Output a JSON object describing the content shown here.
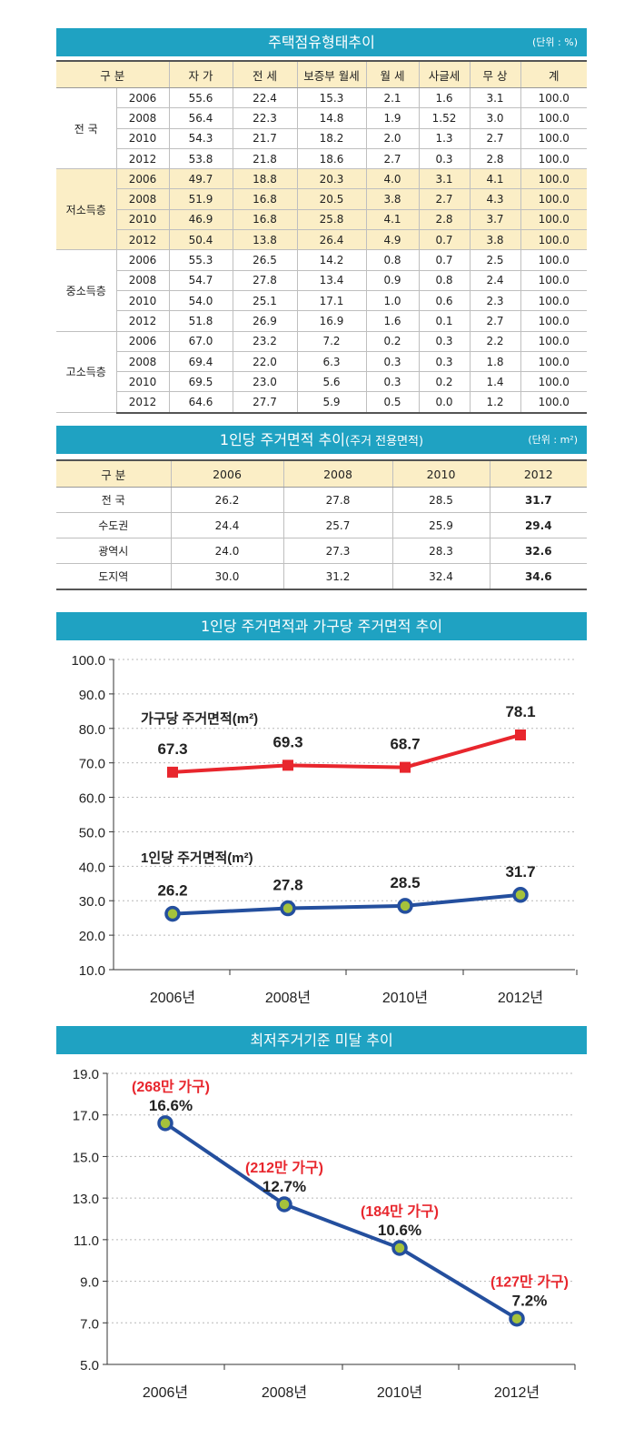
{
  "tenure": {
    "title": "주택점유형태추이",
    "unit": "(단위 : %)",
    "headers": [
      "구 분",
      "",
      "자 가",
      "전 세",
      "보증부 월세",
      "월 세",
      "사글세",
      "무 상",
      "계"
    ],
    "groups": [
      {
        "name": "전 국",
        "highlight": false,
        "rows": [
          [
            "2006",
            "55.6",
            "22.4",
            "15.3",
            "2.1",
            "1.6",
            "3.1",
            "100.0"
          ],
          [
            "2008",
            "56.4",
            "22.3",
            "14.8",
            "1.9",
            "1.52",
            "3.0",
            "100.0"
          ],
          [
            "2010",
            "54.3",
            "21.7",
            "18.2",
            "2.0",
            "1.3",
            "2.7",
            "100.0"
          ],
          [
            "2012",
            "53.8",
            "21.8",
            "18.6",
            "2.7",
            "0.3",
            "2.8",
            "100.0"
          ]
        ]
      },
      {
        "name": "저소득층",
        "highlight": true,
        "rows": [
          [
            "2006",
            "49.7",
            "18.8",
            "20.3",
            "4.0",
            "3.1",
            "4.1",
            "100.0"
          ],
          [
            "2008",
            "51.9",
            "16.8",
            "20.5",
            "3.8",
            "2.7",
            "4.3",
            "100.0"
          ],
          [
            "2010",
            "46.9",
            "16.8",
            "25.8",
            "4.1",
            "2.8",
            "3.7",
            "100.0"
          ],
          [
            "2012",
            "50.4",
            "13.8",
            "26.4",
            "4.9",
            "0.7",
            "3.8",
            "100.0"
          ]
        ]
      },
      {
        "name": "중소득층",
        "highlight": false,
        "rows": [
          [
            "2006",
            "55.3",
            "26.5",
            "14.2",
            "0.8",
            "0.7",
            "2.5",
            "100.0"
          ],
          [
            "2008",
            "54.7",
            "27.8",
            "13.4",
            "0.9",
            "0.8",
            "2.4",
            "100.0"
          ],
          [
            "2010",
            "54.0",
            "25.1",
            "17.1",
            "1.0",
            "0.6",
            "2.3",
            "100.0"
          ],
          [
            "2012",
            "51.8",
            "26.9",
            "16.9",
            "1.6",
            "0.1",
            "2.7",
            "100.0"
          ]
        ]
      },
      {
        "name": "고소득층",
        "highlight": false,
        "rows": [
          [
            "2006",
            "67.0",
            "23.2",
            "7.2",
            "0.2",
            "0.3",
            "2.2",
            "100.0"
          ],
          [
            "2008",
            "69.4",
            "22.0",
            "6.3",
            "0.3",
            "0.3",
            "1.8",
            "100.0"
          ],
          [
            "2010",
            "69.5",
            "23.0",
            "5.6",
            "0.3",
            "0.2",
            "1.4",
            "100.0"
          ],
          [
            "2012",
            "64.6",
            "27.7",
            "5.9",
            "0.5",
            "0.0",
            "1.2",
            "100.0"
          ]
        ]
      }
    ]
  },
  "area": {
    "title": "1인당 주거면적 추이",
    "title_sub": "(주거 전용면적)",
    "unit": "(단위 : m²)",
    "headers": [
      "구 분",
      "2006",
      "2008",
      "2010",
      "2012"
    ],
    "rows": [
      [
        "전 국",
        "26.2",
        "27.8",
        "28.5",
        "31.7"
      ],
      [
        "수도권",
        "24.4",
        "25.7",
        "25.9",
        "29.4"
      ],
      [
        "광역시",
        "24.0",
        "27.3",
        "28.3",
        "32.6"
      ],
      [
        "도지역",
        "30.0",
        "31.2",
        "32.4",
        "34.6"
      ]
    ]
  },
  "chart_data": [
    {
      "type": "line",
      "title": "1인당 주거면적과 가구당 주거면적 추이",
      "categories": [
        "2006년",
        "2008년",
        "2010년",
        "2012년"
      ],
      "ylim": [
        10.0,
        100.0
      ],
      "yticks": [
        "10.0",
        "20.0",
        "30.0",
        "40.0",
        "50.0",
        "60.0",
        "70.0",
        "80.0",
        "90.0",
        "100.0"
      ],
      "grid": true,
      "series": [
        {
          "name": "가구당 주거면적(m²)",
          "values": [
            67.3,
            69.3,
            68.7,
            78.1
          ],
          "labels": [
            "67.3",
            "69.3",
            "68.7",
            "78.1"
          ],
          "color": "#e8262d",
          "marker": "square"
        },
        {
          "name": "1인당 주거면적(m²)",
          "values": [
            26.2,
            27.8,
            28.5,
            31.7
          ],
          "labels": [
            "26.2",
            "27.8",
            "28.5",
            "31.7"
          ],
          "color": "#244f9e",
          "marker": "circle",
          "marker_fill": "#a5c23b"
        }
      ]
    },
    {
      "type": "line",
      "title": "최저주거기준 미달 추이",
      "categories": [
        "2006년",
        "2008년",
        "2010년",
        "2012년"
      ],
      "ylim": [
        5.0,
        19.0
      ],
      "yticks": [
        "5.0",
        "7.0",
        "9.0",
        "11.0",
        "13.0",
        "15.0",
        "17.0",
        "19.0"
      ],
      "grid": true,
      "series": [
        {
          "values": [
            16.6,
            12.7,
            10.6,
            7.2
          ],
          "labels": [
            "16.6%",
            "12.7%",
            "10.6%",
            "7.2%"
          ],
          "annotations": [
            "(268만 가구)",
            "(212만 가구)",
            "(184만 가구)",
            "(127만 가구)"
          ],
          "color": "#244f9e",
          "marker": "circle",
          "marker_fill": "#a5c23b",
          "annotation_color": "#e8262d"
        }
      ]
    }
  ]
}
